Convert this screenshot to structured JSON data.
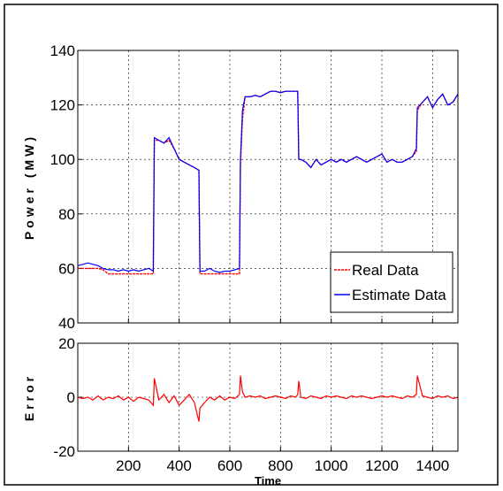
{
  "chart_data": [
    {
      "type": "line",
      "y_label": "Power (MW)",
      "x": [
        0,
        20,
        40,
        60,
        80,
        100,
        120,
        140,
        160,
        180,
        200,
        220,
        240,
        260,
        280,
        298,
        302,
        320,
        340,
        360,
        380,
        400,
        420,
        440,
        460,
        478,
        482,
        500,
        520,
        540,
        560,
        580,
        600,
        620,
        638,
        642,
        650,
        660,
        680,
        700,
        720,
        740,
        760,
        780,
        800,
        820,
        840,
        860,
        868,
        872,
        880,
        900,
        920,
        940,
        960,
        980,
        1000,
        1020,
        1040,
        1060,
        1080,
        1100,
        1120,
        1140,
        1160,
        1180,
        1200,
        1220,
        1240,
        1260,
        1280,
        1300,
        1320,
        1336,
        1340,
        1360,
        1380,
        1400,
        1420,
        1440,
        1460,
        1480,
        1500
      ],
      "series": [
        {
          "name": "Real Data",
          "color": "#ff0000",
          "dash": true,
          "values": [
            60,
            60,
            60,
            60,
            60,
            59.5,
            58,
            58,
            58,
            58,
            58,
            58,
            58,
            58,
            58,
            58,
            107,
            107,
            106,
            107,
            104,
            100,
            99,
            98,
            97,
            96,
            58,
            58,
            58,
            58,
            58,
            58,
            58,
            58,
            58,
            98,
            115,
            123,
            123,
            123.5,
            123,
            124,
            125,
            125,
            124.5,
            125,
            125,
            125,
            125,
            100,
            100,
            99,
            97,
            100,
            98,
            99,
            100,
            99,
            100,
            99,
            100,
            101,
            100,
            99,
            100,
            101,
            102,
            99,
            100,
            99,
            99,
            100,
            101,
            103,
            118,
            121,
            123,
            119,
            122,
            124,
            120,
            121,
            124
          ]
        },
        {
          "name": "Estimate Data",
          "color": "#0000ff",
          "dash": false,
          "values": [
            61,
            61.5,
            62,
            61.5,
            61,
            60,
            59.5,
            59.5,
            59,
            59.5,
            59,
            59.5,
            59,
            59.5,
            60,
            59,
            108,
            107,
            106,
            108,
            104,
            100,
            99,
            98,
            97,
            96,
            59,
            59,
            60,
            59,
            58.5,
            59,
            59,
            59.5,
            60,
            100,
            118,
            123,
            123,
            123.5,
            123,
            124,
            125,
            125,
            124.5,
            125,
            125,
            125,
            125,
            100,
            100,
            99,
            97,
            100,
            98,
            99,
            100,
            99,
            100,
            99,
            100,
            101,
            100,
            99,
            100,
            101,
            102,
            99,
            100,
            99,
            99,
            100,
            101,
            104,
            119,
            121,
            123,
            119,
            122,
            124,
            120,
            121,
            124
          ]
        }
      ],
      "xlim": [
        0,
        1500
      ],
      "ylim": [
        40,
        140
      ],
      "xticks": [
        200,
        400,
        600,
        800,
        1000,
        1200,
        1400
      ],
      "yticks": [
        40,
        60,
        80,
        100,
        120,
        140
      ],
      "grid": true,
      "legend": "lower right"
    },
    {
      "type": "line",
      "y_label": "Error",
      "x_label": "Time",
      "x": [
        0,
        20,
        40,
        60,
        80,
        100,
        120,
        140,
        160,
        180,
        200,
        220,
        240,
        260,
        280,
        298,
        302,
        320,
        340,
        360,
        380,
        400,
        420,
        440,
        460,
        478,
        482,
        500,
        520,
        540,
        560,
        580,
        600,
        620,
        638,
        642,
        650,
        660,
        680,
        700,
        720,
        740,
        760,
        780,
        800,
        820,
        840,
        860,
        868,
        872,
        880,
        900,
        920,
        940,
        960,
        980,
        1000,
        1020,
        1040,
        1060,
        1080,
        1100,
        1120,
        1140,
        1160,
        1180,
        1200,
        1220,
        1240,
        1260,
        1280,
        1300,
        1320,
        1336,
        1340,
        1360,
        1380,
        1400,
        1420,
        1440,
        1460,
        1480,
        1500
      ],
      "series": [
        {
          "name": "Error",
          "color": "#ff0000",
          "values": [
            0,
            -0.5,
            0,
            -1,
            0.5,
            -1,
            0,
            -0.5,
            0.5,
            -1,
            0,
            -1.5,
            0,
            -0.5,
            -1,
            -3,
            7,
            -1,
            1,
            -2,
            0.5,
            -3,
            -1,
            1,
            -2,
            -9,
            -4,
            -2,
            0,
            -1,
            0.5,
            -1,
            0,
            -0.5,
            1,
            8,
            2,
            0,
            0.5,
            0,
            0.5,
            -0.5,
            0,
            0.5,
            0,
            -0.5,
            0.5,
            0,
            1,
            6,
            0,
            -0.5,
            0.5,
            0,
            -0.5,
            0.5,
            0,
            0.5,
            0,
            -0.5,
            0.5,
            0,
            0.5,
            0,
            -0.5,
            0,
            0.5,
            0,
            0.5,
            0,
            -0.5,
            0.5,
            0,
            1,
            8,
            0.5,
            0,
            -0.5,
            0.5,
            0,
            0.5,
            -0.5,
            0
          ]
        }
      ],
      "xlim": [
        0,
        1500
      ],
      "ylim": [
        -20,
        20
      ],
      "xticks": [
        200,
        400,
        600,
        800,
        1000,
        1200,
        1400
      ],
      "yticks": [
        -20,
        0,
        20
      ],
      "grid": true
    }
  ]
}
